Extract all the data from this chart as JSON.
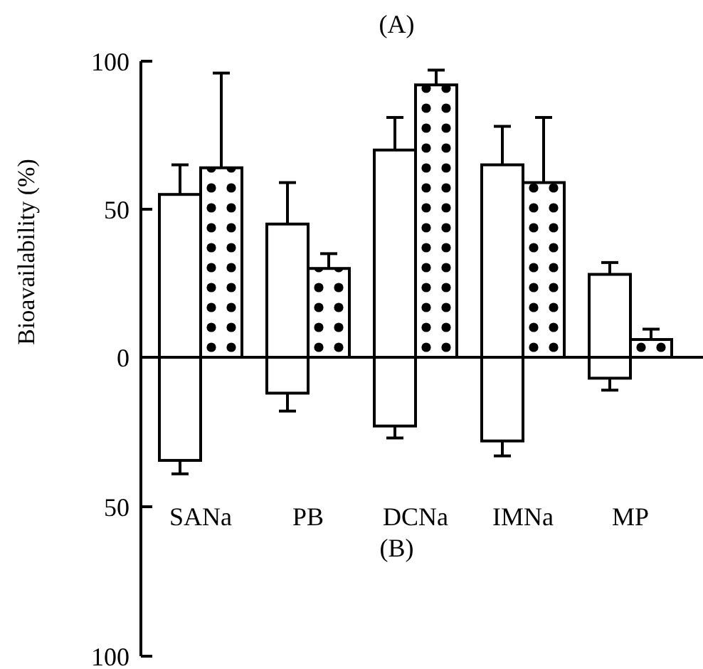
{
  "chart_data": [
    {
      "type": "bar",
      "title": "(A)",
      "ylabel": "Bioavailability (%)",
      "categories": [
        null,
        null,
        null,
        null,
        null
      ],
      "tick_labels": "y",
      "ylim": [
        0,
        100
      ],
      "yticks": [
        0,
        50,
        100
      ],
      "series": [
        {
          "color": "#ffffff",
          "values": [
            55,
            45,
            70,
            65,
            28
          ],
          "errors": [
            [
              55,
              65
            ],
            [
              45,
              59
            ],
            [
              70,
              81
            ],
            [
              65,
              78
            ],
            [
              28,
              32
            ]
          ]
        },
        {
          "color": "#000000",
          "values": [
            64,
            30,
            92,
            59,
            6
          ],
          "errors": [
            [
              64,
              96
            ],
            [
              30,
              35
            ],
            [
              92,
              97
            ],
            [
              59,
              81
            ],
            [
              6,
              9.5
            ]
          ]
        }
      ]
    },
    {
      "type": "bar",
      "title": "(B)",
      "categories": [
        "SANa",
        "PB",
        "DCNa",
        "IMNa",
        "MP"
      ],
      "ylim": [
        100,
        0
      ],
      "yticks": [
        {
          "value": 0,
          "label": null
        },
        50,
        100
      ],
      "series": [
        {
          "color": "#ffffff",
          "values": [
            34.5,
            12,
            23,
            28,
            7
          ],
          "errors": [
            [
              34.5,
              39
            ],
            [
              12,
              18
            ],
            [
              23,
              27
            ],
            [
              28,
              33
            ],
            [
              7,
              11
            ]
          ]
        }
      ]
    }
  ]
}
